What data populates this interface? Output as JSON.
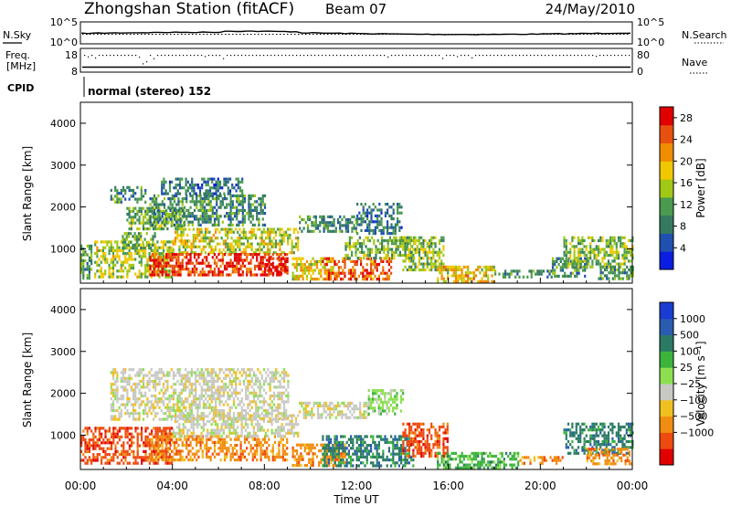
{
  "header": {
    "station": "Zhongshan Station (fitACF)",
    "beam": "Beam 07",
    "date": "24/May/2010"
  },
  "top_panels": {
    "nsky": {
      "label": "N.Sky",
      "ticks": [
        "10^5",
        "10^0"
      ]
    },
    "nsearch": {
      "label": "N.Search",
      "ticks": [
        "10^5",
        "10^0"
      ]
    },
    "freq": {
      "label_line1": "Freq.",
      "label_line2": "[MHz]",
      "ticks": [
        "18",
        "8"
      ]
    },
    "nave": {
      "label": "Nave",
      "ticks": [
        "80",
        "0"
      ]
    },
    "cpid": {
      "label": "CPID",
      "value": "normal (stereo) 152"
    }
  },
  "colors": {
    "power": [
      "#0a1de0",
      "#2050b0",
      "#357a60",
      "#4a9a50",
      "#a0c814",
      "#f0c800",
      "#f08c00",
      "#e85010",
      "#e00000"
    ],
    "velocity": [
      "#e00000",
      "#ef4a10",
      "#f08c10",
      "#f0c020",
      "#c8c8c4",
      "#8ce050",
      "#3cb43c",
      "#2a7a64",
      "#2a5cb0",
      "#1a3cd0"
    ]
  },
  "chart_data": [
    {
      "type": "heatmap",
      "quantity": "Power",
      "ylabel": "Slant Range [km]",
      "ylim": [
        180,
        4500
      ],
      "yticks": [
        "1000",
        "2000",
        "3000",
        "4000"
      ],
      "colorbar": {
        "label": "Power [dB]",
        "ticks": [
          "4",
          "8",
          "12",
          "16",
          "20",
          "24",
          "28"
        ],
        "range": [
          0,
          30
        ]
      },
      "echo_regions": [
        {
          "t": [
            0.0,
            0.5
          ],
          "r": [
            300,
            1100
          ],
          "level": 11
        },
        {
          "t": [
            0.6,
            4.0
          ],
          "r": [
            300,
            1200
          ],
          "level": 15
        },
        {
          "t": [
            1.8,
            3.2
          ],
          "r": [
            1000,
            1400
          ],
          "level": 12
        },
        {
          "t": [
            1.3,
            2.8
          ],
          "r": [
            2100,
            2500
          ],
          "level": 9
        },
        {
          "t": [
            2.0,
            4.5
          ],
          "r": [
            1500,
            2000
          ],
          "level": 12
        },
        {
          "t": [
            3.0,
            8.0
          ],
          "r": [
            1600,
            2300
          ],
          "level": 10
        },
        {
          "t": [
            3.5,
            7.0
          ],
          "r": [
            2300,
            2700
          ],
          "level": 8
        },
        {
          "t": [
            4.0,
            9.5
          ],
          "r": [
            900,
            1500
          ],
          "level": 16
        },
        {
          "t": [
            3.0,
            9.0
          ],
          "r": [
            400,
            900
          ],
          "level": 26
        },
        {
          "t": [
            8.0,
            9.0
          ],
          "r": [
            400,
            800
          ],
          "level": 28
        },
        {
          "t": [
            9.2,
            11.0
          ],
          "r": [
            300,
            800
          ],
          "level": 17
        },
        {
          "t": [
            10.5,
            13.5
          ],
          "r": [
            300,
            800
          ],
          "level": 24
        },
        {
          "t": [
            9.5,
            12.0
          ],
          "r": [
            1400,
            1800
          ],
          "level": 10
        },
        {
          "t": [
            11.5,
            14.5
          ],
          "r": [
            800,
            1300
          ],
          "level": 13
        },
        {
          "t": [
            12.0,
            14.0
          ],
          "r": [
            1400,
            2100
          ],
          "level": 8
        },
        {
          "t": [
            14.0,
            15.8
          ],
          "r": [
            500,
            1300
          ],
          "level": 14
        },
        {
          "t": [
            15.5,
            18.0
          ],
          "r": [
            250,
            600
          ],
          "level": 18
        },
        {
          "t": [
            18.0,
            20.5
          ],
          "r": [
            300,
            500
          ],
          "level": 10
        },
        {
          "t": [
            20.5,
            22.0
          ],
          "r": [
            350,
            800
          ],
          "level": 9
        },
        {
          "t": [
            21.0,
            24.0
          ],
          "r": [
            600,
            1300
          ],
          "level": 14
        },
        {
          "t": [
            22.5,
            24.0
          ],
          "r": [
            300,
            600
          ],
          "level": 11
        }
      ]
    },
    {
      "type": "heatmap",
      "quantity": "Velocity",
      "ylabel": "Slant Range [km]",
      "ylim": [
        180,
        4500
      ],
      "yticks": [
        "1000",
        "2000",
        "3000",
        "4000"
      ],
      "colorbar": {
        "label": "Velocity [m s⁻¹]",
        "ticks": [
          "1000",
          "500",
          "100",
          "25",
          "−25",
          "−100",
          "−500",
          "−1000"
        ]
      },
      "xlabel": "Time UT",
      "xticks": [
        "00:00",
        "04:00",
        "08:00",
        "12:00",
        "16:00",
        "20:00",
        "00:00"
      ],
      "xlim": [
        0,
        24
      ],
      "echo_regions": [
        {
          "t": [
            0.0,
            4.0
          ],
          "r": [
            300,
            1200
          ],
          "class": 1
        },
        {
          "t": [
            3.0,
            9.0
          ],
          "r": [
            400,
            1000
          ],
          "class": 2
        },
        {
          "t": [
            1.3,
            9.0
          ],
          "r": [
            1400,
            2600
          ],
          "class": 4
        },
        {
          "t": [
            4.0,
            9.5
          ],
          "r": [
            1000,
            1500
          ],
          "class": 4
        },
        {
          "t": [
            9.2,
            11.5
          ],
          "r": [
            300,
            800
          ],
          "class": 2
        },
        {
          "t": [
            10.5,
            14.5
          ],
          "r": [
            300,
            1000
          ],
          "class": 7
        },
        {
          "t": [
            9.5,
            12.5
          ],
          "r": [
            1400,
            1800
          ],
          "class": 4
        },
        {
          "t": [
            12.5,
            14.0
          ],
          "r": [
            1500,
            2100
          ],
          "class": 5
        },
        {
          "t": [
            14.0,
            16.0
          ],
          "r": [
            500,
            1300
          ],
          "class": 1
        },
        {
          "t": [
            15.5,
            19.0
          ],
          "r": [
            250,
            600
          ],
          "class": 6
        },
        {
          "t": [
            19.0,
            21.0
          ],
          "r": [
            300,
            500
          ],
          "class": 2
        },
        {
          "t": [
            21.0,
            24.0
          ],
          "r": [
            600,
            1300
          ],
          "class": 7
        },
        {
          "t": [
            22.0,
            24.0
          ],
          "r": [
            300,
            700
          ],
          "class": 2
        }
      ]
    }
  ]
}
